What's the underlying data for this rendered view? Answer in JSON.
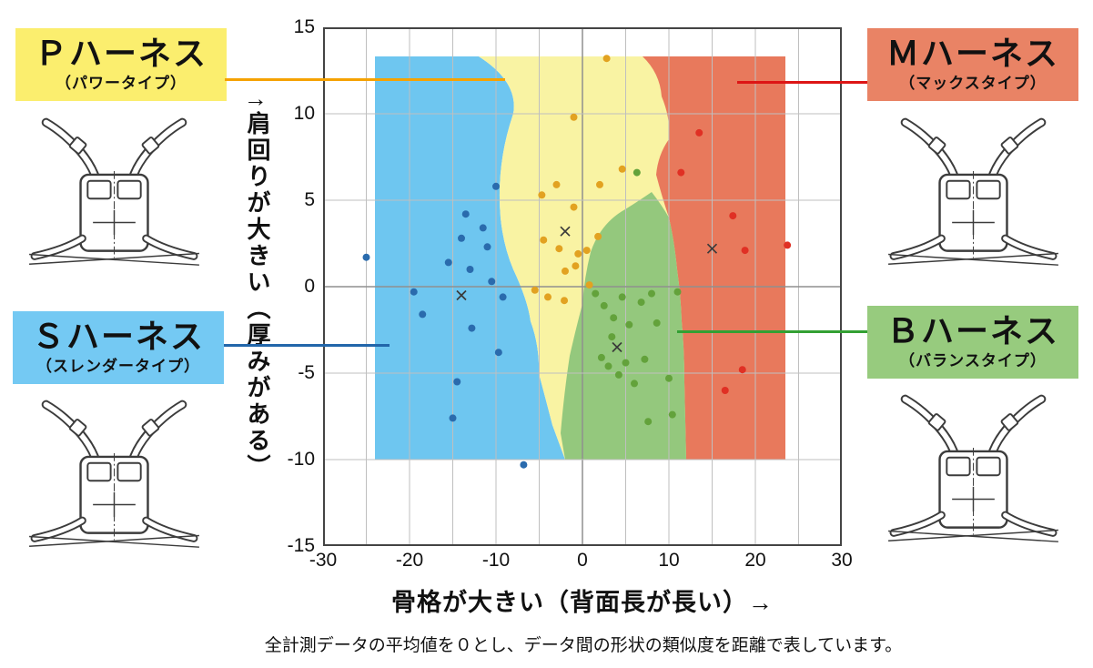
{
  "page": {
    "xaxis_label": "骨格が大きい（背面長が長い）→",
    "yaxis_label": "↑肩回りが大きい（厚みがある）",
    "caption": "全計測データの平均値を０とし、データ間の形状の類似度を距離で表しています。"
  },
  "legends": {
    "P": {
      "title": "Ｐハーネス",
      "subtitle": "（パワータイプ）",
      "bg": "#FBEE6E",
      "line": "#F5A200"
    },
    "M": {
      "title": "Ｍハーネス",
      "subtitle": "（マックスタイプ）",
      "bg": "#E98365",
      "line": "#DD1515"
    },
    "S": {
      "title": "Ｓハーネス",
      "subtitle": "（スレンダータイプ）",
      "bg": "#74C9F3",
      "line": "#2266AA"
    },
    "B": {
      "title": "Ｂハーネス",
      "subtitle": "（バランスタイプ）",
      "bg": "#97CB7E",
      "line": "#33A033"
    }
  },
  "chart_data": {
    "type": "scatter",
    "title": "",
    "xlabel": "骨格が大きい（背面長が長い）→",
    "ylabel": "↑肩回りが大きい（厚みがある）",
    "xlim": [
      -30,
      30
    ],
    "ylim": [
      -15,
      15
    ],
    "grid": true,
    "grid_step": 5,
    "x_ticks": [
      -30,
      -20,
      -10,
      0,
      10,
      20,
      30
    ],
    "y_ticks": [
      15,
      10,
      5,
      0,
      -5,
      -10,
      -15
    ],
    "legend_position": "outside-callouts",
    "regions": {
      "S": {
        "label": "Ｓハーネス（スレンダータイプ）",
        "color": "#6EC6F0"
      },
      "P": {
        "label": "Ｐハーネス（パワータイプ）",
        "color": "#F9F3A3"
      },
      "B": {
        "label": "Ｂハーネス（バランスタイプ）",
        "color": "#94C87D"
      },
      "M": {
        "label": "Ｍハーネス（マックスタイプ）",
        "color": "#E8795C"
      }
    },
    "series": [
      {
        "name": "Ｓハーネス（スレンダータイプ）",
        "color": "#2A6BAD",
        "center": [
          -14,
          -0.5
        ],
        "points": [
          [
            -25,
            1.7
          ],
          [
            -19.5,
            -0.3
          ],
          [
            -18.5,
            -1.6
          ],
          [
            -15.5,
            1.4
          ],
          [
            -14,
            2.8
          ],
          [
            -13.5,
            4.2
          ],
          [
            -13,
            1.0
          ],
          [
            -12.8,
            -2.4
          ],
          [
            -11.5,
            3.4
          ],
          [
            -11,
            2.3
          ],
          [
            -10.5,
            0.3
          ],
          [
            -10,
            5.8
          ],
          [
            -9.7,
            -3.8
          ],
          [
            -9.2,
            -0.6
          ],
          [
            -14.5,
            -5.5
          ],
          [
            -15,
            -7.6
          ],
          [
            -6.8,
            -10.3
          ]
        ]
      },
      {
        "name": "Ｐハーネス（パワータイプ）",
        "color": "#E2A221",
        "center": [
          -2,
          3.2
        ],
        "points": [
          [
            2.8,
            13.2
          ],
          [
            -1,
            9.8
          ],
          [
            -4.7,
            5.3
          ],
          [
            -3,
            5.9
          ],
          [
            -1,
            4.6
          ],
          [
            -4.5,
            2.7
          ],
          [
            -2.7,
            2.2
          ],
          [
            -0.5,
            1.9
          ],
          [
            -5.5,
            -0.2
          ],
          [
            -4,
            -0.6
          ],
          [
            -2,
            0.9
          ],
          [
            -0.8,
            1.2
          ],
          [
            0.5,
            2.1
          ],
          [
            1.8,
            2.9
          ],
          [
            2,
            5.9
          ],
          [
            4.6,
            6.8
          ],
          [
            0.8,
            0.1
          ],
          [
            -2.1,
            -0.8
          ]
        ]
      },
      {
        "name": "Ｂハーネス（バランスタイプ）",
        "color": "#63A23B",
        "center": [
          4,
          -3.5
        ],
        "points": [
          [
            6.3,
            6.6
          ],
          [
            1.5,
            -0.4
          ],
          [
            2.5,
            -1.1
          ],
          [
            3.6,
            -1.8
          ],
          [
            4.6,
            -0.6
          ],
          [
            5.4,
            -2.2
          ],
          [
            2.2,
            -4.1
          ],
          [
            3,
            -4.6
          ],
          [
            4.2,
            -5.1
          ],
          [
            5,
            -4.4
          ],
          [
            6,
            -5.6
          ],
          [
            7.2,
            -4.2
          ],
          [
            8,
            -0.4
          ],
          [
            8.6,
            -2.1
          ],
          [
            10,
            -5.3
          ],
          [
            11,
            -0.3
          ],
          [
            7.6,
            -7.8
          ],
          [
            10.4,
            -7.4
          ],
          [
            3.4,
            -2.9
          ],
          [
            6.8,
            -0.9
          ]
        ]
      },
      {
        "name": "Ｍハーネス（マックスタイプ）",
        "color": "#E03024",
        "center": [
          15,
          2.2
        ],
        "points": [
          [
            13.5,
            8.9
          ],
          [
            11.4,
            6.6
          ],
          [
            17.4,
            4.1
          ],
          [
            23.7,
            2.4
          ],
          [
            18.8,
            2.1
          ],
          [
            18.5,
            -4.8
          ],
          [
            16.5,
            -6.0
          ]
        ]
      }
    ]
  }
}
